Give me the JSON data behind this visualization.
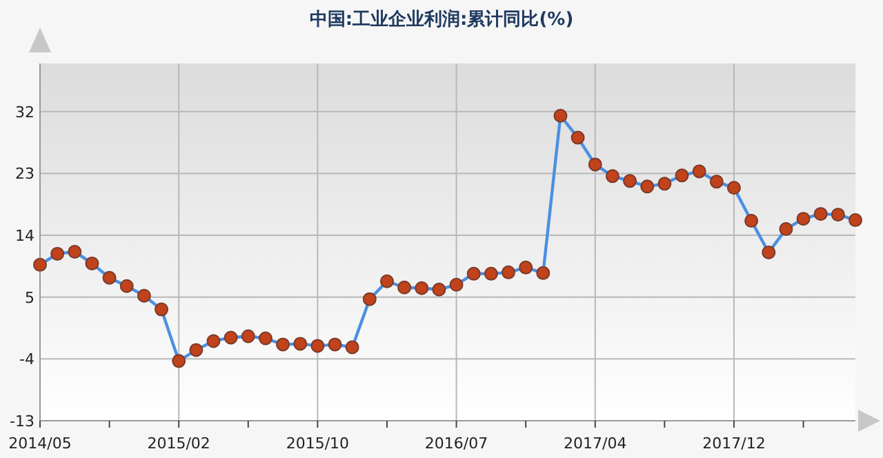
{
  "chart_data": {
    "type": "line",
    "title": "中国:工业企业利润:累计同比(%)",
    "categories": [
      "2014/05",
      null,
      null,
      null,
      null,
      null,
      null,
      null,
      "2015/02",
      null,
      null,
      null,
      null,
      null,
      null,
      null,
      "2015/10",
      null,
      null,
      null,
      null,
      null,
      null,
      null,
      "2016/07",
      null,
      null,
      null,
      null,
      null,
      null,
      null,
      "2017/04",
      null,
      null,
      null,
      null,
      null,
      null,
      null,
      "2017/12",
      null,
      null,
      null,
      null,
      null,
      null,
      null
    ],
    "series": [
      {
        "color": "#4a90e2",
        "values": [
          9.7,
          11.3,
          11.6,
          9.9,
          7.8,
          6.6,
          5.2,
          3.2,
          -4.3,
          -2.7,
          -1.4,
          -0.9,
          -0.7,
          -1.0,
          -1.9,
          -1.8,
          -2.1,
          -1.9,
          -2.3,
          4.7,
          7.3,
          6.4,
          6.3,
          6.1,
          6.8,
          8.4,
          8.4,
          8.6,
          9.3,
          8.5,
          31.4,
          28.2,
          24.3,
          22.6,
          21.9,
          21.1,
          21.5,
          22.7,
          23.3,
          21.8,
          20.9,
          16.1,
          11.5,
          14.9,
          16.4,
          17.1,
          17.0,
          16.2
        ]
      }
    ],
    "ylim": [
      -13,
      39
    ],
    "yticks": [
      -13,
      -4,
      5,
      14,
      23,
      32
    ],
    "grid": true,
    "marker": "circle",
    "line_style": "solid"
  }
}
